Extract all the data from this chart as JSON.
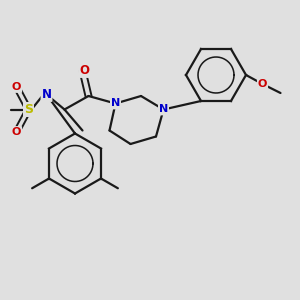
{
  "background_color": "#e0e0e0",
  "bond_color": "#1a1a1a",
  "atom_colors": {
    "N": "#0000cc",
    "O": "#cc0000",
    "S": "#bbbb00",
    "C": "#1a1a1a"
  },
  "figsize": [
    3.0,
    3.0
  ],
  "dpi": 100
}
